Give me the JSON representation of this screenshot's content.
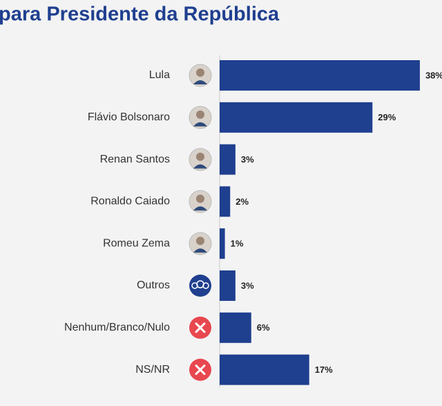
{
  "chart_data": {
    "type": "bar",
    "orientation": "horizontal",
    "title": "para Presidente da República",
    "categories": [
      "Lula",
      "Flávio Bolsonaro",
      "Renan Santos",
      "Ronaldo Caiado",
      "Romeu Zema",
      "Outros",
      "Nenhum/Branco/Nulo",
      "NS/NR"
    ],
    "values": [
      38,
      29,
      3,
      2,
      1,
      3,
      6,
      17
    ],
    "value_labels": [
      "38%",
      "29%",
      "3%",
      "2%",
      "1%",
      "3%",
      "6%",
      "17%"
    ],
    "color": "#1f3f8f"
  }
}
